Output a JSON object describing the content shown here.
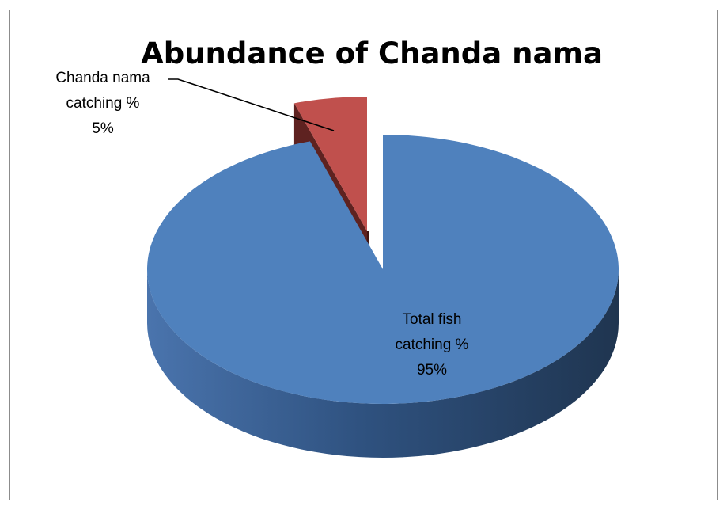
{
  "chart_data": {
    "type": "pie",
    "style": "3d-exploded",
    "title": "Abundance of Chanda nama",
    "slices": [
      {
        "category": "Total fish catching %",
        "value": 95,
        "label_lines": [
          "Total fish",
          "catching %",
          "95%"
        ],
        "color": "#4F81BD",
        "side_light": "#4A74AD",
        "side_dark": "#1F3550"
      },
      {
        "category": "Chanda nama catching %",
        "value": 5,
        "label_lines": [
          "Chanda nama",
          "catching %",
          "5%"
        ],
        "color": "#C0504D",
        "side_light": "#5E2220",
        "side_dark": "#3F1514",
        "exploded": true,
        "leader_line": true
      }
    ],
    "legend": "none"
  }
}
